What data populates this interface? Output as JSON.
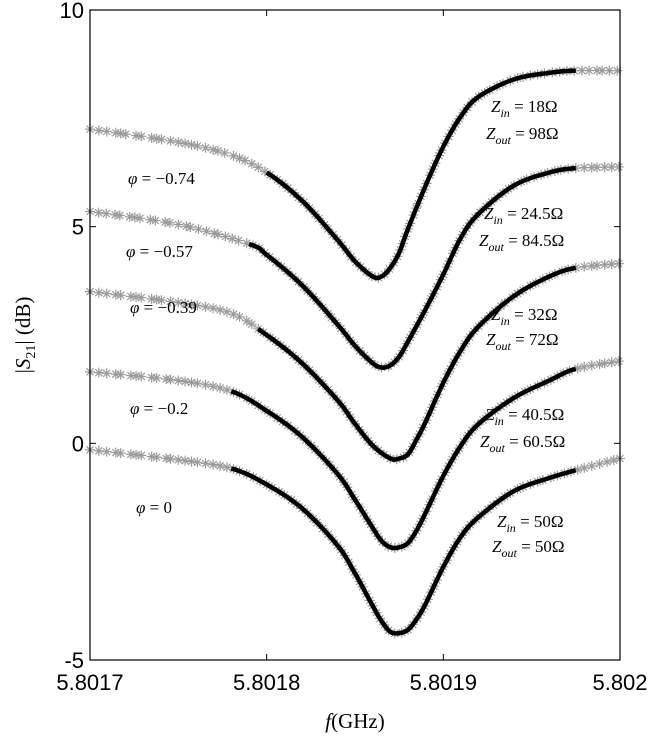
{
  "chart_data": {
    "type": "line",
    "xlabel": "f(GHz)",
    "ylabel": "|S21| (dB)",
    "xlim": [
      5.8017,
      5.802
    ],
    "ylim": [
      -5,
      10
    ],
    "xticks": [
      "5.8017",
      "5.8018",
      "5.8019",
      "5.802"
    ],
    "yticks": [
      "-5",
      "0",
      "5",
      "10"
    ],
    "x_tick_values": [
      5.8017,
      5.8018,
      5.8019,
      5.802
    ],
    "y_tick_values": [
      -5,
      0,
      5,
      10
    ],
    "grid": false,
    "legend": "none",
    "colors": {
      "measured": "#9a9a9a",
      "fit": "#000000"
    },
    "series": [
      {
        "phi": "0",
        "zin": "50Ω",
        "zout": "50Ω",
        "x": [
          5.8017,
          5.80175,
          5.80178,
          5.8018,
          5.80182,
          5.80184,
          5.80185,
          5.80186,
          5.801865,
          5.80187,
          5.801875,
          5.80188,
          5.801885,
          5.80189,
          5.8019,
          5.80191,
          5.80192,
          5.80194,
          5.80196,
          5.801975,
          5.802
        ],
        "y": [
          -0.15,
          -0.38,
          -0.58,
          -0.95,
          -1.5,
          -2.35,
          -3.0,
          -3.75,
          -4.1,
          -4.35,
          -4.38,
          -4.3,
          -4.05,
          -3.7,
          -2.85,
          -2.15,
          -1.7,
          -1.1,
          -0.8,
          -0.62,
          -0.35
        ],
        "fit_x": [
          5.80178,
          5.801975
        ]
      },
      {
        "phi": "-0.2",
        "zin": "40.5Ω",
        "zout": "60.5Ω",
        "x": [
          5.8017,
          5.80175,
          5.80178,
          5.8018,
          5.80182,
          5.80184,
          5.80185,
          5.80186,
          5.801865,
          5.80187,
          5.801875,
          5.80188,
          5.801885,
          5.80189,
          5.8019,
          5.80191,
          5.80192,
          5.80194,
          5.80196,
          5.801975,
          5.802
        ],
        "y": [
          1.65,
          1.45,
          1.2,
          0.75,
          0.15,
          -0.7,
          -1.3,
          -1.95,
          -2.25,
          -2.4,
          -2.4,
          -2.3,
          -2.0,
          -1.6,
          -0.75,
          -0.05,
          0.45,
          1.05,
          1.45,
          1.72,
          1.9
        ],
        "fit_x": [
          5.80178,
          5.801975
        ]
      },
      {
        "phi": "-0.39",
        "zin": "32Ω",
        "zout": "72Ω",
        "x": [
          5.8017,
          5.80175,
          5.80178,
          5.8018,
          5.80182,
          5.80184,
          5.80185,
          5.80186,
          5.80187,
          5.801875,
          5.80188,
          5.801885,
          5.80189,
          5.8019,
          5.80191,
          5.80192,
          5.80194,
          5.80196,
          5.801975,
          5.802
        ],
        "y": [
          3.5,
          3.25,
          3.0,
          2.5,
          1.85,
          1.0,
          0.45,
          -0.05,
          -0.35,
          -0.35,
          -0.25,
          0.1,
          0.5,
          1.4,
          2.15,
          2.7,
          3.4,
          3.85,
          4.05,
          4.15
        ],
        "fit_x": [
          5.801795,
          5.801975
        ]
      },
      {
        "phi": "-0.57",
        "zin": "24.5Ω",
        "zout": "84.5Ω",
        "x": [
          5.8017,
          5.80175,
          5.80179,
          5.8018,
          5.80182,
          5.80184,
          5.80185,
          5.80186,
          5.801865,
          5.80187,
          5.801875,
          5.80188,
          5.80189,
          5.8019,
          5.80191,
          5.80192,
          5.80194,
          5.80196,
          5.801975,
          5.802
        ],
        "y": [
          5.35,
          5.05,
          4.6,
          4.35,
          3.65,
          2.75,
          2.25,
          1.85,
          1.75,
          1.8,
          2.0,
          2.35,
          3.1,
          3.9,
          4.75,
          5.3,
          5.95,
          6.25,
          6.35,
          6.38
        ],
        "fit_x": [
          5.80179,
          5.801975
        ]
      },
      {
        "phi": "-0.74",
        "zin": "18Ω",
        "zout": "98Ω",
        "x": [
          5.8017,
          5.80175,
          5.80178,
          5.8018,
          5.80182,
          5.80184,
          5.80185,
          5.80186,
          5.801865,
          5.80187,
          5.801875,
          5.80188,
          5.80189,
          5.8019,
          5.80191,
          5.80192,
          5.80194,
          5.80196,
          5.801975,
          5.802
        ],
        "y": [
          7.25,
          6.95,
          6.65,
          6.25,
          5.6,
          4.7,
          4.2,
          3.85,
          3.85,
          4.05,
          4.4,
          4.95,
          5.95,
          6.85,
          7.55,
          8.0,
          8.4,
          8.55,
          8.6,
          8.6
        ],
        "fit_x": [
          5.8018,
          5.801975
        ]
      }
    ]
  }
}
